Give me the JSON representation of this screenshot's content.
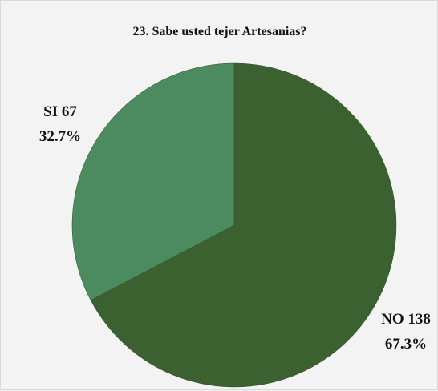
{
  "chart_data": {
    "type": "pie",
    "title": "23. Sabe usted tejer Artesanias?",
    "slices": [
      {
        "label": "NO",
        "value": 138,
        "percent": "67.3%",
        "color": "#3b6130"
      },
      {
        "label": "SI",
        "value": 67,
        "percent": "32.7%",
        "color": "#4c8a5f"
      }
    ],
    "start_angle_deg": 0,
    "direction": "clockwise",
    "legend": "none"
  }
}
